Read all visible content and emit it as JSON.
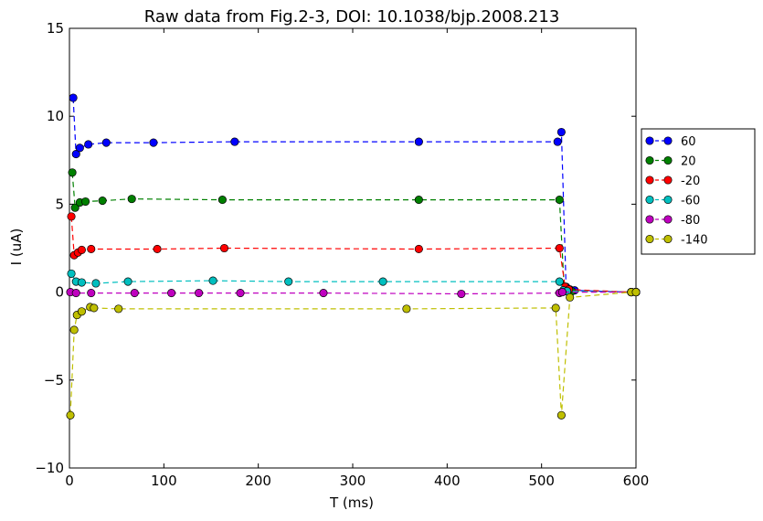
{
  "chart_data": {
    "type": "line",
    "title": "Raw data from Fig.2-3, DOI: 10.1038/bjp.2008.213",
    "xlabel": "T (ms)",
    "ylabel": "I (uA)",
    "xlim": [
      0,
      600
    ],
    "ylim": [
      -10,
      15
    ],
    "xticks": [
      0,
      100,
      200,
      300,
      400,
      500,
      600
    ],
    "yticks": [
      -10,
      -5,
      0,
      5,
      10,
      15
    ],
    "xtick_labels": [
      "0",
      "100",
      "200",
      "300",
      "400",
      "500",
      "600"
    ],
    "ytick_labels": [
      "−10",
      "−5",
      "0",
      "5",
      "10",
      "15"
    ],
    "legend_position": "right",
    "line_style": "dashed",
    "marker": "circle",
    "series": [
      {
        "name": "60",
        "color": "#0000ff",
        "x": [
          4,
          7,
          11,
          20,
          39,
          89,
          175,
          370,
          517,
          521,
          526,
          530,
          535,
          595,
          600
        ],
        "y": [
          11.05,
          7.85,
          8.2,
          8.4,
          8.5,
          8.5,
          8.55,
          8.55,
          8.55,
          9.1,
          0.3,
          0.15,
          0.1,
          0.0,
          0.0
        ]
      },
      {
        "name": "20",
        "color": "#008000",
        "x": [
          3,
          6,
          11,
          17,
          35,
          66,
          162,
          370,
          519,
          524,
          528,
          532,
          595,
          600
        ],
        "y": [
          6.8,
          4.8,
          5.1,
          5.15,
          5.2,
          5.3,
          5.25,
          5.25,
          5.25,
          0.15,
          0.1,
          0.05,
          0.0,
          0.0
        ]
      },
      {
        "name": "-20",
        "color": "#ff0000",
        "x": [
          2,
          5,
          9,
          13,
          23,
          93,
          164,
          370,
          519,
          525,
          529,
          595,
          600
        ],
        "y": [
          4.3,
          2.1,
          2.25,
          2.4,
          2.45,
          2.45,
          2.5,
          2.45,
          2.5,
          0.3,
          0.15,
          0.0,
          0.0
        ]
      },
      {
        "name": "-60",
        "color": "#00bfbf",
        "x": [
          2,
          7,
          13,
          28,
          62,
          152,
          232,
          332,
          519,
          523,
          527,
          595,
          600
        ],
        "y": [
          1.05,
          0.6,
          0.55,
          0.5,
          0.6,
          0.65,
          0.6,
          0.6,
          0.6,
          0.1,
          0.05,
          0.0,
          0.0
        ]
      },
      {
        "name": "-80",
        "color": "#bf00bf",
        "x": [
          1,
          7,
          23,
          69,
          108,
          137,
          181,
          269,
          415,
          519,
          522,
          595,
          600
        ],
        "y": [
          0.0,
          -0.05,
          -0.05,
          -0.05,
          -0.05,
          -0.05,
          -0.05,
          -0.05,
          -0.1,
          -0.05,
          0.0,
          0.0,
          0.0
        ]
      },
      {
        "name": "-140",
        "color": "#bfbf00",
        "x": [
          1,
          5,
          8,
          13,
          22,
          26,
          52,
          357,
          515,
          521,
          530,
          595,
          600
        ],
        "y": [
          -7.0,
          -2.15,
          -1.3,
          -1.1,
          -0.85,
          -0.9,
          -0.95,
          -0.95,
          -0.9,
          -7.0,
          -0.3,
          0.0,
          0.0
        ]
      }
    ]
  }
}
